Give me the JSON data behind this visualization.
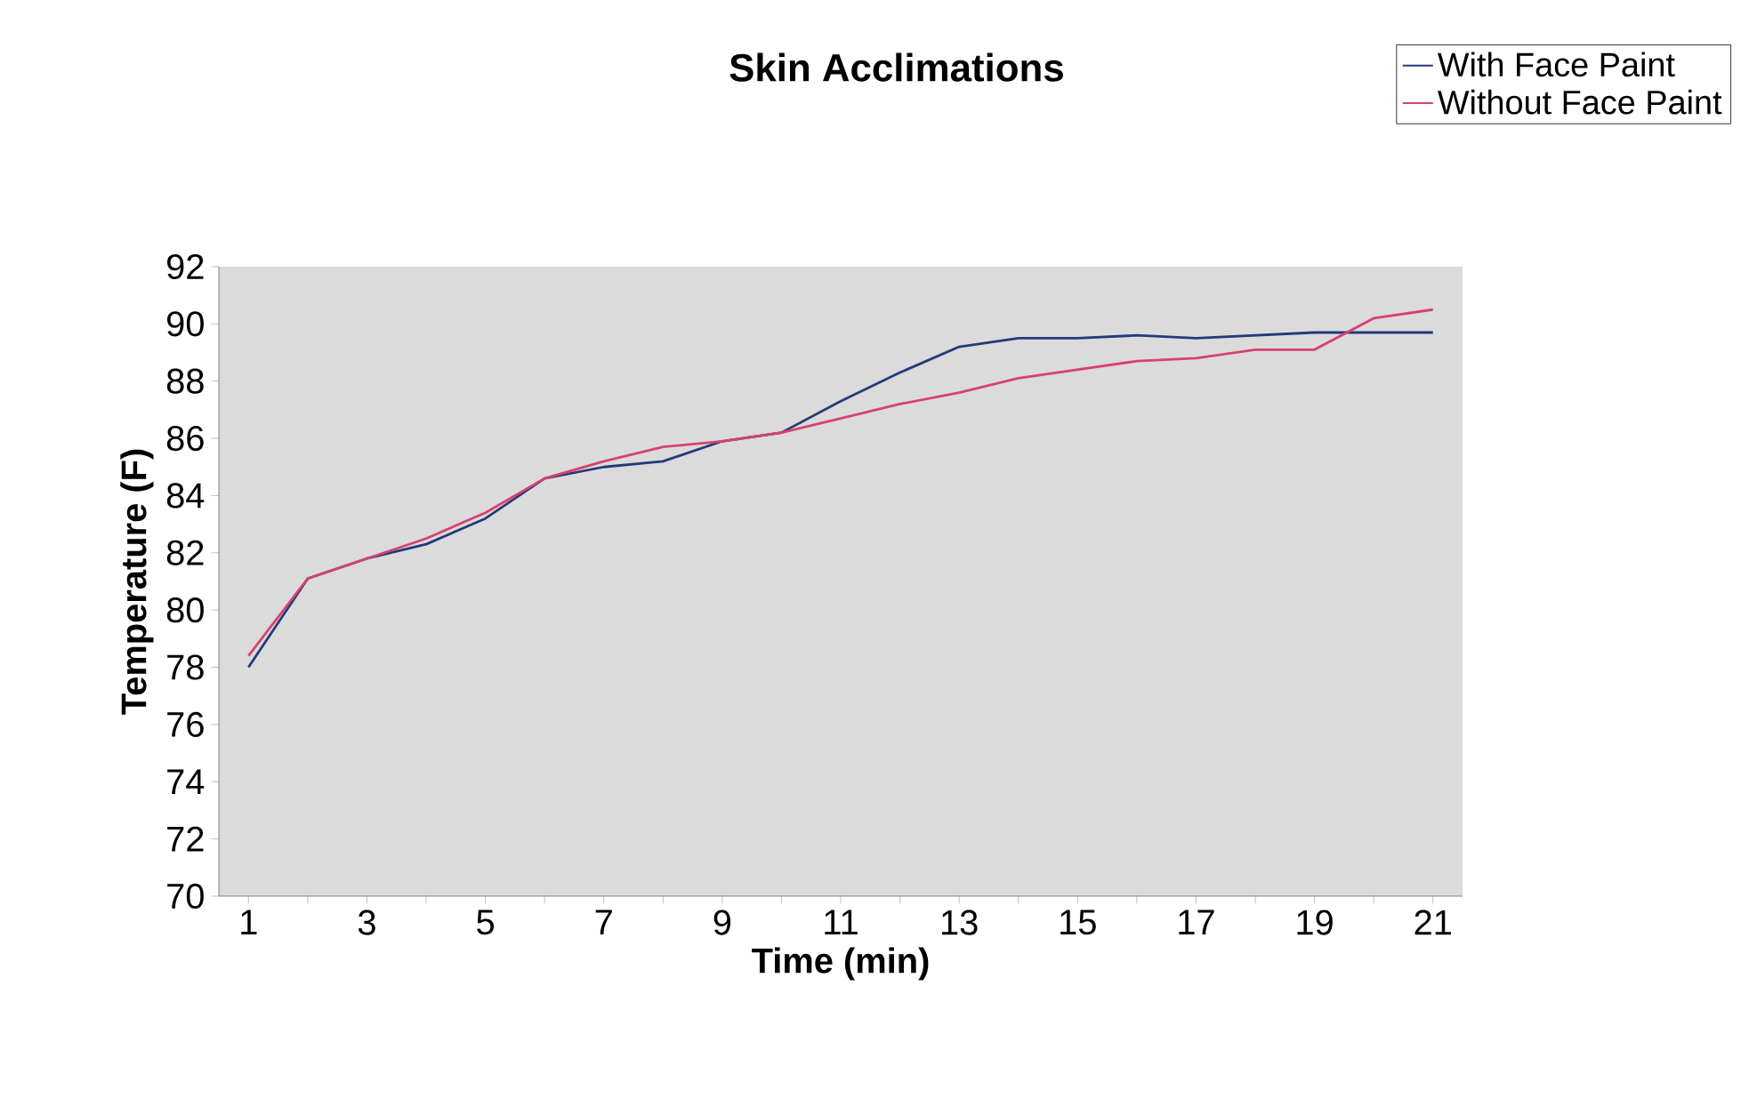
{
  "chart_data": {
    "type": "line",
    "title": "Skin Acclimations",
    "xlabel": "Time (min)",
    "ylabel": "Temperature (F)",
    "categories": [
      "1",
      null,
      "3",
      null,
      "5",
      null,
      "7",
      null,
      "9",
      null,
      "11",
      null,
      "13",
      null,
      "15",
      null,
      "17",
      null,
      "19",
      null,
      "21"
    ],
    "series": [
      {
        "name": "With Face Paint",
        "color": "#243a7a",
        "values": [
          78.0,
          81.1,
          81.8,
          82.3,
          83.2,
          84.6,
          85.0,
          85.2,
          85.9,
          86.2,
          87.3,
          88.3,
          89.2,
          89.5,
          89.5,
          89.6,
          89.5,
          89.6,
          89.7,
          89.7,
          89.7
        ]
      },
      {
        "name": "Without Face Paint",
        "color": "#d9406f",
        "values": [
          78.4,
          81.1,
          81.8,
          82.5,
          83.4,
          84.6,
          85.2,
          85.7,
          85.9,
          86.2,
          86.7,
          87.2,
          87.6,
          88.1,
          88.4,
          88.7,
          88.8,
          89.1,
          89.1,
          90.2,
          90.5
        ]
      }
    ],
    "ylim": [
      70,
      92
    ],
    "yticks": [
      70,
      72,
      74,
      76,
      78,
      80,
      82,
      84,
      86,
      88,
      90,
      92
    ],
    "legend": "top right",
    "marker": "none",
    "line_style": "solid",
    "grid": false
  }
}
